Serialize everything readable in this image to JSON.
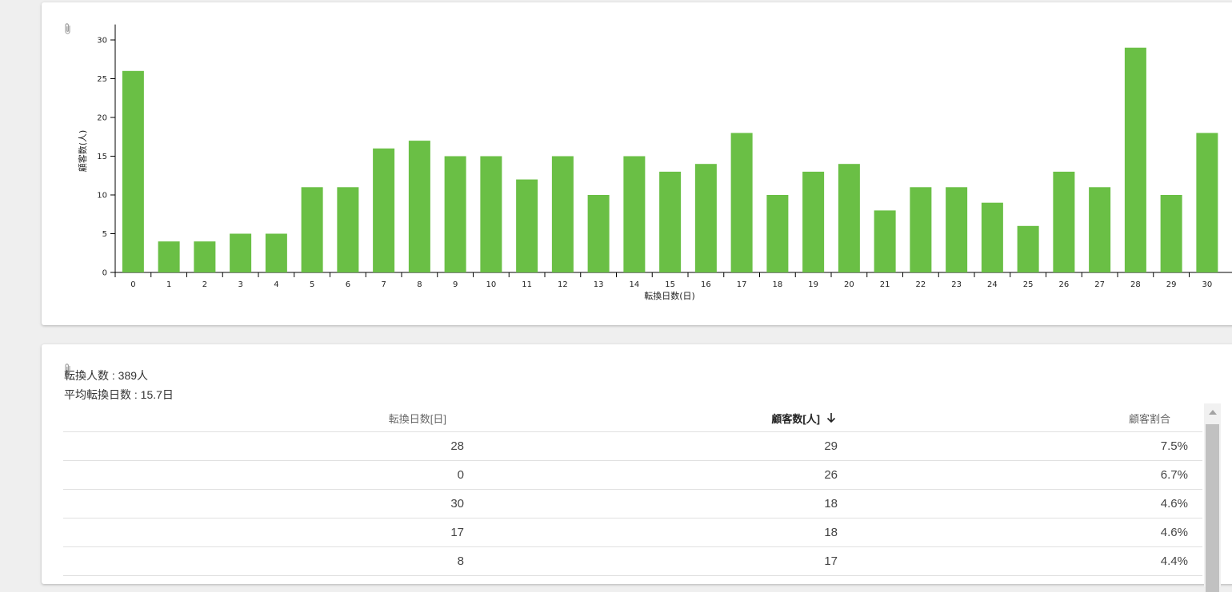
{
  "chart_data": {
    "type": "bar",
    "xlabel": "転換日数(日)",
    "ylabel": "顧客数(人)",
    "ylim": [
      0,
      32
    ],
    "yticks": [
      0,
      5,
      10,
      15,
      20,
      25,
      30
    ],
    "categories": [
      "0",
      "1",
      "2",
      "3",
      "4",
      "5",
      "6",
      "7",
      "8",
      "9",
      "10",
      "11",
      "12",
      "13",
      "14",
      "15",
      "16",
      "17",
      "18",
      "19",
      "20",
      "21",
      "22",
      "23",
      "24",
      "25",
      "26",
      "27",
      "28",
      "29",
      "30"
    ],
    "values": [
      26,
      4,
      4,
      5,
      5,
      11,
      11,
      16,
      17,
      15,
      15,
      12,
      15,
      10,
      15,
      13,
      14,
      18,
      10,
      13,
      14,
      8,
      11,
      11,
      9,
      6,
      13,
      11,
      29,
      10,
      18
    ],
    "bar_color": "#6abf45",
    "grid": false
  },
  "summary": {
    "converted_count": "転換人数 : 389人",
    "average_days": "平均転換日数 : 15.7日"
  },
  "table": {
    "headers": [
      "転換日数[日]",
      "顧客数[人]",
      "顧客割合"
    ],
    "sorted_column": 1,
    "sort_icon": "arrow-down-icon",
    "rows": [
      [
        "28",
        "29",
        "7.5%"
      ],
      [
        "0",
        "26",
        "6.7%"
      ],
      [
        "30",
        "18",
        "4.6%"
      ],
      [
        "17",
        "18",
        "4.6%"
      ],
      [
        "8",
        "17",
        "4.4%"
      ]
    ]
  },
  "icons": {
    "attachment": "paperclip-icon",
    "scroll_up": "scroll-up-arrow-icon"
  }
}
